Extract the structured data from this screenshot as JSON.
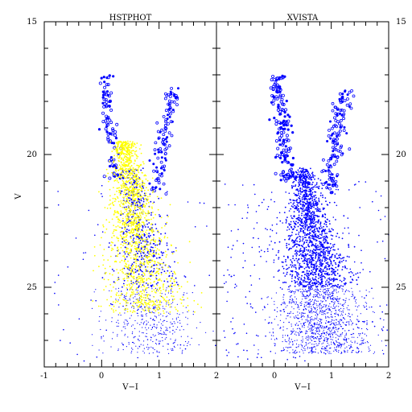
{
  "chart_data": [
    {
      "type": "scatter",
      "title": "HSTPHOT",
      "xlabel": "V−I",
      "ylabel": "V",
      "xlim": [
        -1,
        2
      ],
      "ylim": [
        28,
        15
      ],
      "x_inverted": false,
      "y_inverted": true,
      "x_ticks": [
        "-1",
        "0",
        "1"
      ],
      "y_ticks": [
        "15",
        "20",
        "25"
      ],
      "series": [
        {
          "color": "#0000ff",
          "marker": "dots and open symbols",
          "description": "CMD: main sequence turnoff near V-I~0.7 V~22; red giant branch up to V~17.5 at V-I~1.2; blue plume at V-I~0 up to V~17; scatter to V~27"
        },
        {
          "color": "#ffff00",
          "marker": "dots",
          "description": "overlay concentrated along main sequence V 20-26, V-I 0.2-1.2"
        }
      ],
      "features": [
        {
          "feature": "blue-plume",
          "x_range": [
            -0.1,
            0.2
          ],
          "y_range": [
            17,
            21
          ]
        },
        {
          "feature": "red-giant-branch",
          "x_range": [
            0.9,
            1.5
          ],
          "y_range": [
            17.5,
            21.5
          ]
        },
        {
          "feature": "main-sequence",
          "x_range": [
            0.3,
            1.1
          ],
          "y_range": [
            21,
            26.5
          ]
        }
      ]
    },
    {
      "type": "scatter",
      "title": "XVISTA",
      "xlabel": "V−I",
      "ylabel": "",
      "xlim": [
        -1,
        2
      ],
      "ylim": [
        28,
        15
      ],
      "x_inverted": false,
      "y_inverted": true,
      "x_ticks": [
        "0",
        "1",
        "2"
      ],
      "y_ticks": [
        "15",
        "20",
        "25"
      ],
      "series": [
        {
          "color": "#0000ff",
          "marker": "dots and open symbols",
          "description": "CMD: dense main sequence V-I 0.3-1.0, V 20-27; red giant branch V-I 0.9-1.4 up to V~17.5; fan to V-I~2 at V~27"
        }
      ],
      "features": [
        {
          "feature": "blue-plume",
          "x_range": [
            -0.1,
            0.3
          ],
          "y_range": [
            17.3,
            21
          ]
        },
        {
          "feature": "red-giant-branch",
          "x_range": [
            0.9,
            1.4
          ],
          "y_range": [
            17.5,
            21
          ]
        },
        {
          "feature": "main-sequence",
          "x_range": [
            0.2,
            1.2
          ],
          "y_range": [
            20,
            27.5
          ]
        }
      ]
    }
  ],
  "right_axis": {
    "y_ticks": [
      "15",
      "20",
      "25"
    ]
  },
  "x_tick_left_edge": "-1",
  "x_tick_shared": "2",
  "colors": {
    "primary": "#0000ff",
    "overlay": "#ffff00",
    "axes": "#000000"
  }
}
